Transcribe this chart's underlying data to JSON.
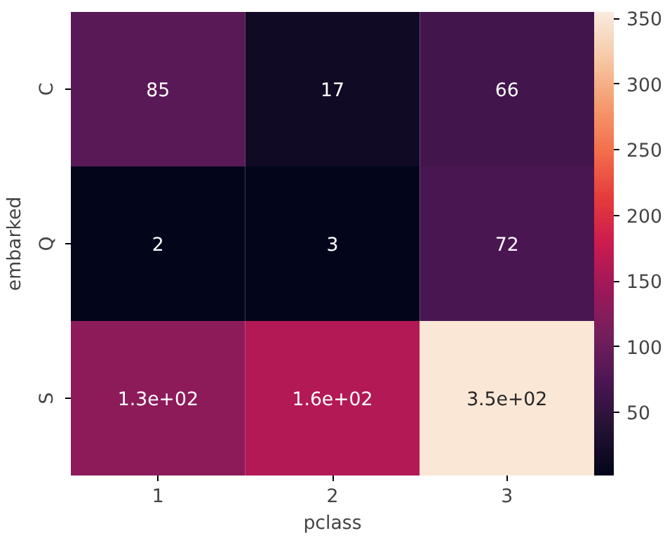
{
  "chart_data": {
    "type": "heatmap",
    "xlabel": "pclass",
    "ylabel": "embarked",
    "categories": [
      "1",
      "2",
      "3"
    ],
    "y_categories": [
      "C",
      "Q",
      "S"
    ],
    "cells": [
      [
        85,
        17,
        66
      ],
      [
        2,
        3,
        72
      ],
      [
        130,
        160,
        350
      ]
    ],
    "cell_labels": [
      [
        "85",
        "17",
        "66"
      ],
      [
        "2",
        "3",
        "72"
      ],
      [
        "1.3e+02",
        "1.6e+02",
        "3.5e+02"
      ]
    ],
    "clim": [
      2,
      355
    ],
    "cticks": [
      50,
      100,
      150,
      200,
      250,
      300,
      350
    ]
  }
}
